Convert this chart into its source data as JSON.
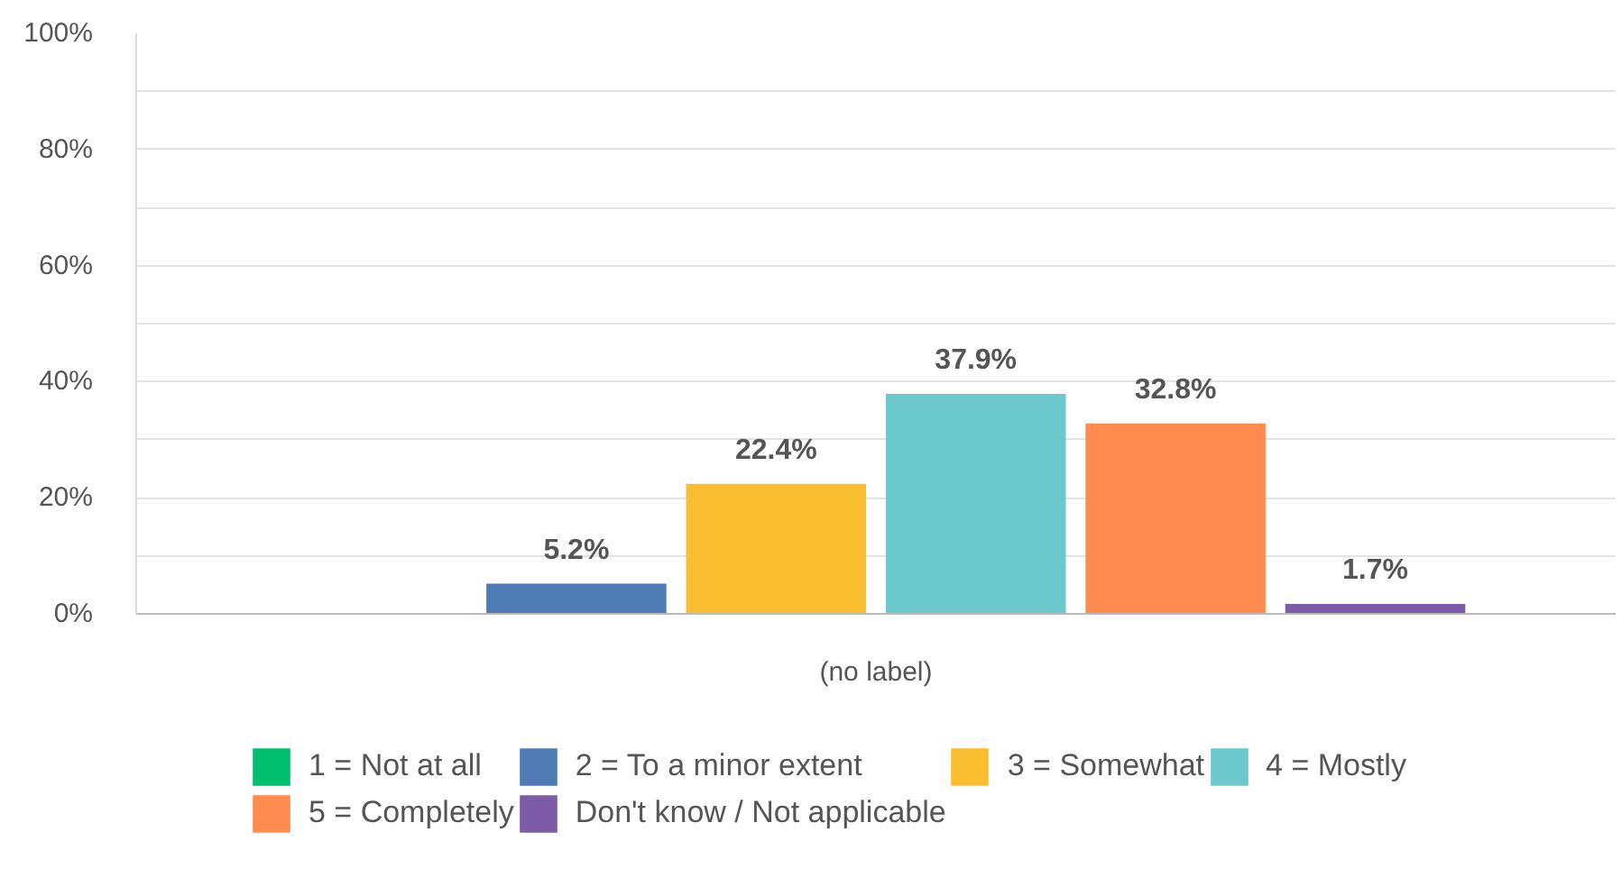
{
  "chart_data": {
    "type": "bar",
    "categories": [
      "(no label)"
    ],
    "series": [
      {
        "name": "1 = Not at all",
        "color": "#00bf6f",
        "values": [
          0
        ],
        "value_labels": [
          null
        ]
      },
      {
        "name": "2 = To a minor extent",
        "color": "#507cb6",
        "values": [
          5.2
        ],
        "value_labels": [
          "5.2%"
        ]
      },
      {
        "name": "3 = Somewhat",
        "color": "#f9be30",
        "values": [
          22.4
        ],
        "value_labels": [
          "22.4%"
        ]
      },
      {
        "name": "4 = Mostly",
        "color": "#6bc8cd",
        "values": [
          37.9
        ],
        "value_labels": [
          "37.9%"
        ]
      },
      {
        "name": "5 = Completely",
        "color": "#ff8b4f",
        "values": [
          32.8
        ],
        "value_labels": [
          "32.8%"
        ]
      },
      {
        "name": "Don't know / Not applicable",
        "color": "#7d5ba6",
        "values": [
          1.7
        ],
        "value_labels": [
          "1.7%"
        ]
      }
    ],
    "ylim": [
      0,
      100
    ],
    "yticks": [
      {
        "value": 0,
        "label": "0%"
      },
      {
        "value": 10,
        "label": null
      },
      {
        "value": 20,
        "label": "20%"
      },
      {
        "value": 30,
        "label": null
      },
      {
        "value": 40,
        "label": "40%"
      },
      {
        "value": 50,
        "label": null
      },
      {
        "value": 60,
        "label": "60%"
      },
      {
        "value": 70,
        "label": null
      },
      {
        "value": 80,
        "label": "80%"
      },
      {
        "value": 90,
        "label": null
      },
      {
        "value": 100,
        "label": "100%"
      }
    ],
    "grid": "y",
    "legend": "bottom"
  }
}
